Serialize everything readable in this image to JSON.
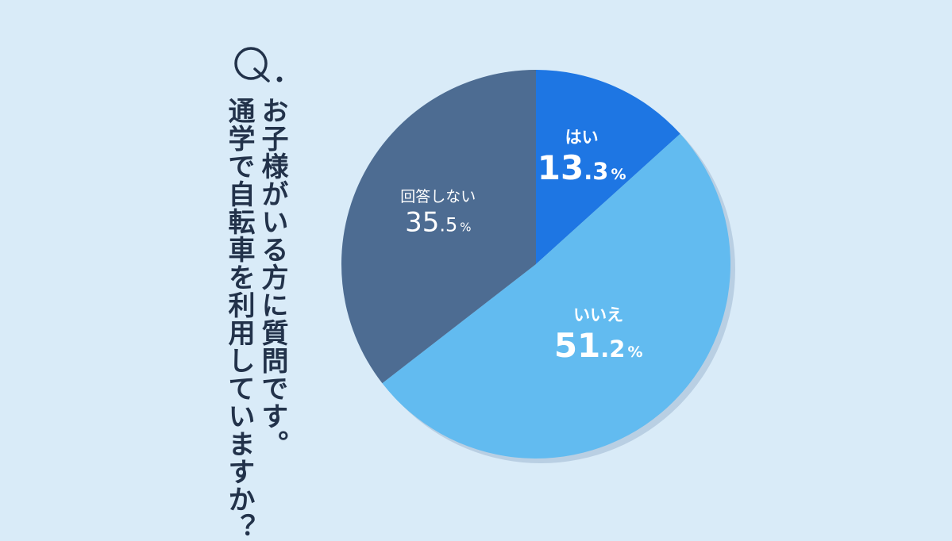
{
  "question": {
    "mark": "Q",
    "line1": "お子様がいる方に質問です。",
    "line2": "通学で自転車を利用していますか？"
  },
  "colors": {
    "background": "#d9ebf8",
    "text_dark": "#22324a",
    "yes": "#1e76e3",
    "no": "#62bbf0",
    "no_answer": "#4d6c92",
    "shadow": "#b9cfe3"
  },
  "chart_data": {
    "type": "pie",
    "slices": [
      {
        "label": "はい",
        "value": 13.3,
        "display_int": "13",
        "display_dec": ".3",
        "unit": "%",
        "color": "#1e76e3"
      },
      {
        "label": "いいえ",
        "value": 51.2,
        "display_int": "51",
        "display_dec": ".2",
        "unit": "%",
        "color": "#62bbf0"
      },
      {
        "label": "回答しない",
        "value": 35.5,
        "display_int": "35",
        "display_dec": ".5",
        "unit": "%",
        "color": "#4d6c92"
      }
    ]
  }
}
